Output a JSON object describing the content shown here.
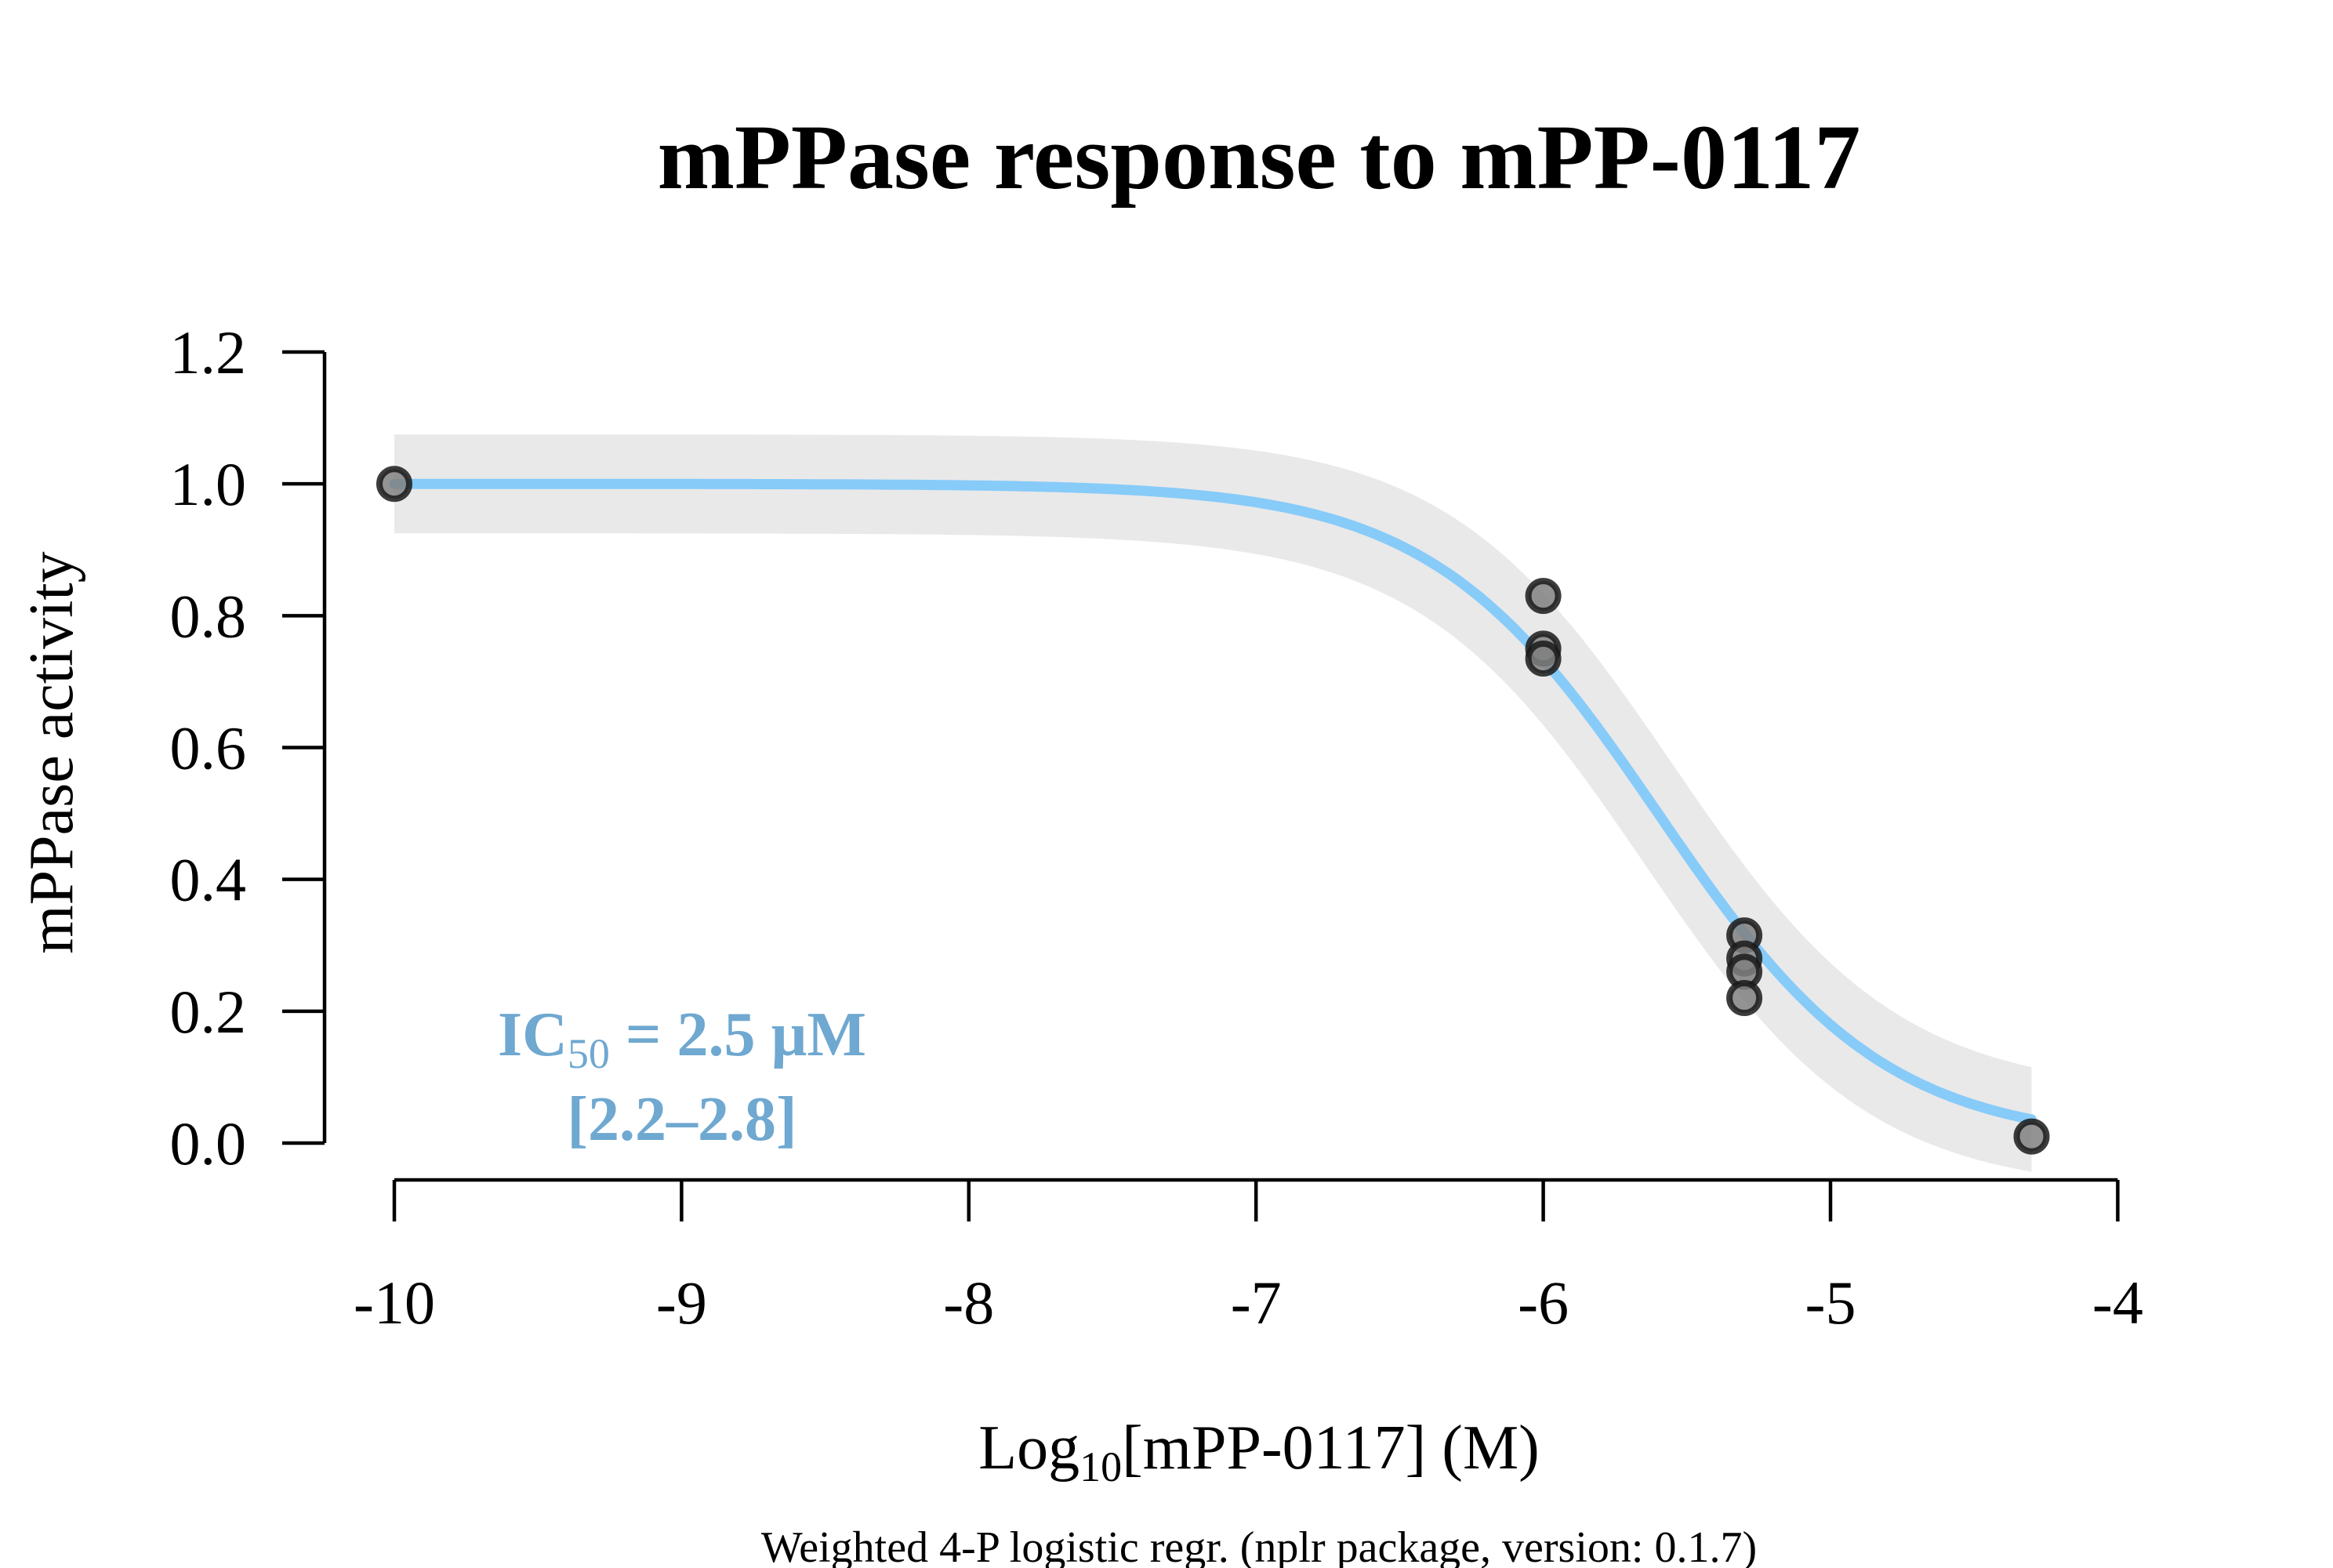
{
  "chart_data": {
    "type": "scatter",
    "title": "mPPase response to mPP-0117",
    "xlabel": {
      "prefix": "Log",
      "subscript": "10",
      "suffix": "[mPP-0117] (M)"
    },
    "ylabel": "mPPase activity",
    "caption": "Weighted 4-P logistic regr. (nplr package, version: 0.1.7)",
    "xlim": [
      -10,
      -4
    ],
    "ylim": [
      0,
      1.2
    ],
    "x_ticks": [
      -10,
      -9,
      -8,
      -7,
      -6,
      -5,
      -4
    ],
    "x_tick_labels": [
      "-10",
      "-9",
      "-8",
      "-7",
      "-6",
      "-5",
      "-4"
    ],
    "y_ticks": [
      0,
      0.2,
      0.4,
      0.6,
      0.8,
      1.0,
      1.2
    ],
    "y_tick_labels": [
      "0.0",
      "0.2",
      "0.4",
      "0.6",
      "0.8",
      "1.0",
      "1.2"
    ],
    "grid": false,
    "points": [
      {
        "x": -10,
        "y": 1.0
      },
      {
        "x": -6,
        "y": 0.83
      },
      {
        "x": -6,
        "y": 0.75
      },
      {
        "x": -6,
        "y": 0.735
      },
      {
        "x": -5.3,
        "y": 0.315
      },
      {
        "x": -5.3,
        "y": 0.28
      },
      {
        "x": -5.3,
        "y": 0.26
      },
      {
        "x": -5.3,
        "y": 0.22
      },
      {
        "x": -4.3,
        "y": 0.01
      }
    ],
    "fit": {
      "model": "4-parameter logistic",
      "top": 1.0,
      "bottom": 0.0,
      "log_ic50": -5.6,
      "hill_slope": 1.1,
      "x_range": [
        -10,
        -4.3
      ],
      "color": "#87CBF9",
      "band_color": "#E9E9E9",
      "band_halfwidth": 0.075
    },
    "annotation": {
      "ic50_prefix": "IC",
      "ic50_subscript": "50",
      "ic50_value": " = 2.5 µM",
      "ci": "[2.2–2.8]",
      "color": "#6FA8D0"
    },
    "point_fill": "#808080",
    "point_stroke": "#1a1a1a"
  }
}
